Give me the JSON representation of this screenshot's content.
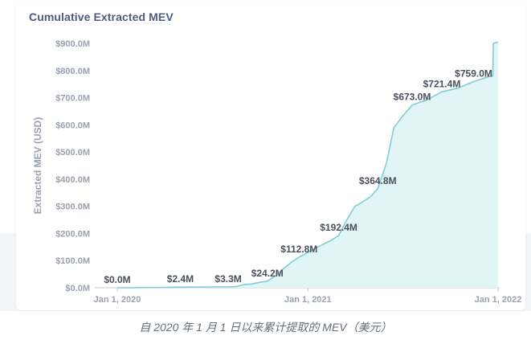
{
  "chart_data": {
    "type": "area",
    "title": "Cumulative Extracted MEV",
    "ylabel": "Extracted MEV (USD)",
    "xlabel": "",
    "ylim": [
      0,
      900
    ],
    "y_ticks": [
      0,
      100,
      200,
      300,
      400,
      500,
      600,
      700,
      800,
      900
    ],
    "y_tick_labels": [
      "$0.0M",
      "$100.0M",
      "$200.0M",
      "$300.0M",
      "$400.0M",
      "$500.0M",
      "$600.0M",
      "$700.0M",
      "$800.0M",
      "$900.0M"
    ],
    "x_ticks": [
      {
        "date": "2020-01-01",
        "label": "Jan 1, 2020"
      },
      {
        "date": "2021-01-01",
        "label": "Jan 1, 2021"
      },
      {
        "date": "2022-01-01",
        "label": "Jan 1, 2022"
      }
    ],
    "xlim": [
      "2020-01-01",
      "2022-01-01"
    ],
    "grid": false,
    "color": "#7fcfd4",
    "fill": "#e2f5f6",
    "series": [
      {
        "points": [
          [
            "2020-01-01",
            0.0
          ],
          [
            "2020-02-01",
            0.3
          ],
          [
            "2020-03-01",
            0.8
          ],
          [
            "2020-04-01",
            1.5
          ],
          [
            "2020-05-01",
            2.4
          ],
          [
            "2020-06-01",
            2.6
          ],
          [
            "2020-07-01",
            3.0
          ],
          [
            "2020-08-01",
            3.3
          ],
          [
            "2020-08-15",
            4.0
          ],
          [
            "2020-09-01",
            12.0
          ],
          [
            "2020-09-15",
            14.0
          ],
          [
            "2020-10-01",
            20.0
          ],
          [
            "2020-10-15",
            24.2
          ],
          [
            "2020-11-01",
            45.0
          ],
          [
            "2020-11-15",
            70.0
          ],
          [
            "2020-12-01",
            95.0
          ],
          [
            "2020-12-15",
            112.8
          ],
          [
            "2021-01-01",
            130.0
          ],
          [
            "2021-01-15",
            145.0
          ],
          [
            "2021-02-01",
            162.0
          ],
          [
            "2021-02-15",
            175.0
          ],
          [
            "2021-03-01",
            192.4
          ],
          [
            "2021-03-15",
            245.0
          ],
          [
            "2021-04-01",
            300.0
          ],
          [
            "2021-04-15",
            315.0
          ],
          [
            "2021-05-01",
            335.0
          ],
          [
            "2021-05-15",
            364.8
          ],
          [
            "2021-06-01",
            460.0
          ],
          [
            "2021-06-15",
            590.0
          ],
          [
            "2021-07-01",
            630.0
          ],
          [
            "2021-07-20",
            673.0
          ],
          [
            "2021-08-15",
            690.0
          ],
          [
            "2021-09-15",
            721.4
          ],
          [
            "2021-10-15",
            735.0
          ],
          [
            "2021-11-15",
            759.0
          ],
          [
            "2021-12-15",
            778.0
          ],
          [
            "2021-12-22",
            780.0
          ],
          [
            "2021-12-23",
            900.0
          ],
          [
            "2022-01-01",
            905.0
          ]
        ]
      }
    ],
    "annotations": [
      {
        "date": "2020-01-01",
        "value": 0.0,
        "label": "$0.0M"
      },
      {
        "date": "2020-05-01",
        "value": 2.4,
        "label": "$2.4M"
      },
      {
        "date": "2020-08-01",
        "value": 3.3,
        "label": "$3.3M"
      },
      {
        "date": "2020-10-15",
        "value": 24.2,
        "label": "$24.2M"
      },
      {
        "date": "2020-12-15",
        "value": 112.8,
        "label": "$112.8M"
      },
      {
        "date": "2021-03-01",
        "value": 192.4,
        "label": "$192.4M"
      },
      {
        "date": "2021-05-15",
        "value": 364.8,
        "label": "$364.8M"
      },
      {
        "date": "2021-07-20",
        "value": 673.0,
        "label": "$673.0M"
      },
      {
        "date": "2021-09-15",
        "value": 721.4,
        "label": "$721.4M"
      },
      {
        "date": "2021-11-15",
        "value": 759.0,
        "label": "$759.0M"
      }
    ]
  },
  "caption": "自 2020 年 1 月 1 日以来累计提取的 MEV（美元）"
}
